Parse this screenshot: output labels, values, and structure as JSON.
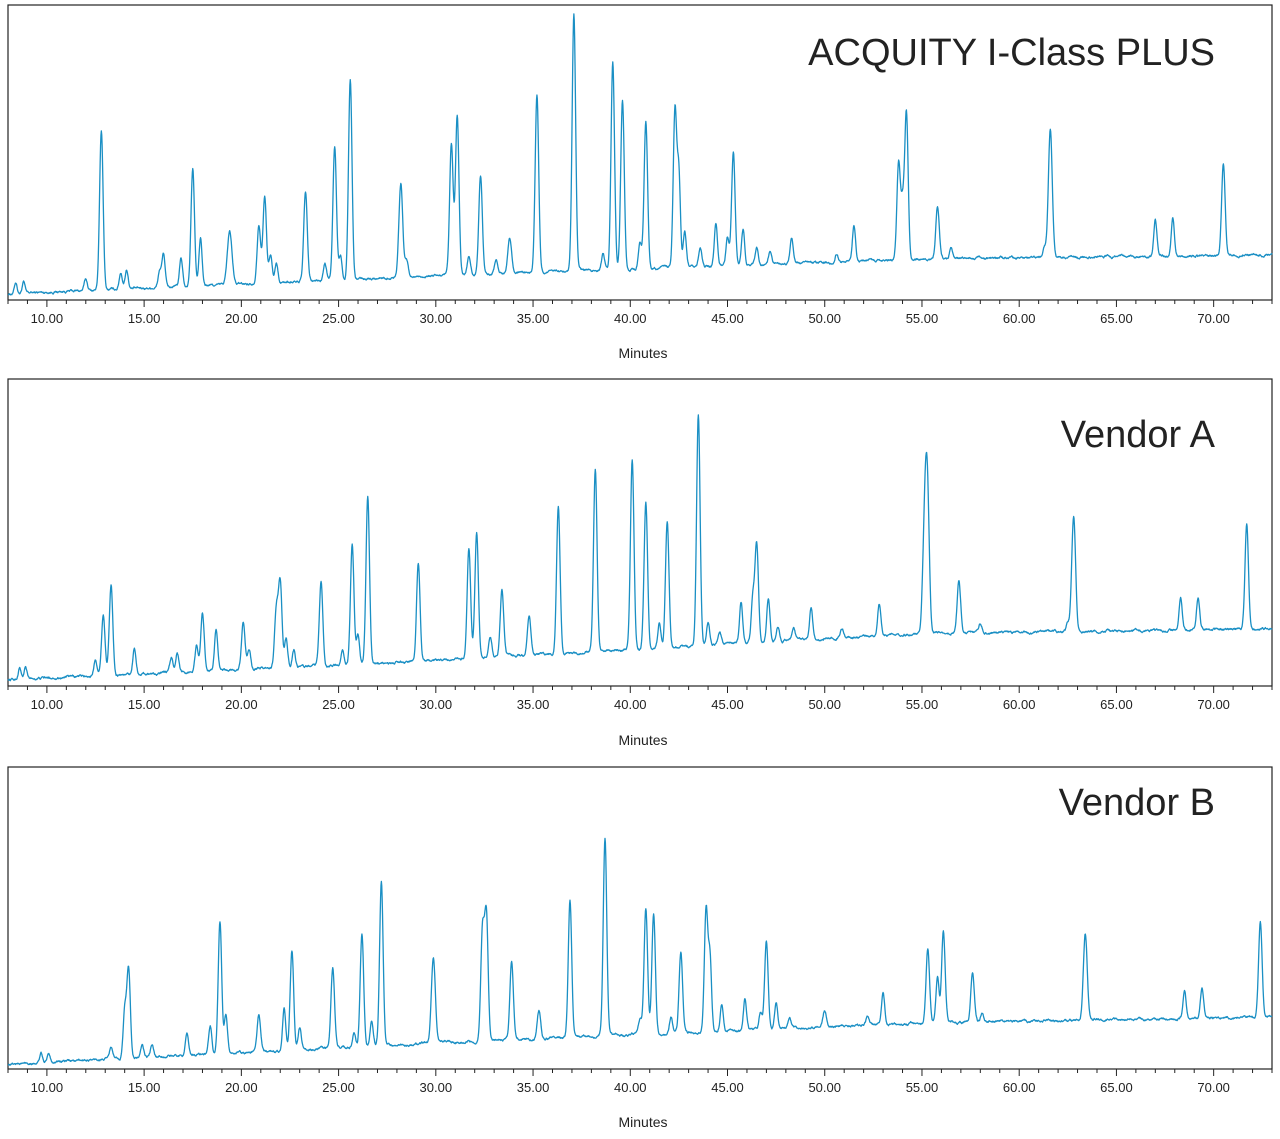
{
  "colors": {
    "trace": "#1a8fc4",
    "frame": "#222222",
    "background": "#ffffff"
  },
  "chart_data": [
    {
      "type": "line",
      "title": "ACQUITY I-Class PLUS",
      "xlabel": "Minutes",
      "ylabel": "",
      "xlim": [
        8.0,
        73.0
      ],
      "ylim": [
        0,
        100
      ],
      "grid": false,
      "legend": "none",
      "xticks": [
        "10.00",
        "15.00",
        "20.00",
        "25.00",
        "30.00",
        "35.00",
        "40.00",
        "45.00",
        "50.00",
        "55.00",
        "60.00",
        "65.00",
        "70.00"
      ],
      "baseline": [
        [
          8.0,
          1.5
        ],
        [
          30.0,
          8.0
        ],
        [
          55.0,
          14.0
        ],
        [
          73.0,
          15.5
        ]
      ],
      "peaks": [
        [
          8.4,
          4,
          0.07
        ],
        [
          8.8,
          4,
          0.07
        ],
        [
          12.0,
          4,
          0.08
        ],
        [
          12.8,
          57,
          0.09
        ],
        [
          13.8,
          6,
          0.08
        ],
        [
          14.1,
          7,
          0.08
        ],
        [
          15.8,
          6,
          0.08
        ],
        [
          16.0,
          12,
          0.08
        ],
        [
          16.9,
          10,
          0.08
        ],
        [
          17.5,
          42,
          0.09
        ],
        [
          17.9,
          17,
          0.08
        ],
        [
          19.4,
          19,
          0.12
        ],
        [
          20.9,
          21,
          0.09
        ],
        [
          21.2,
          31,
          0.09
        ],
        [
          21.5,
          10,
          0.08
        ],
        [
          21.8,
          7,
          0.08
        ],
        [
          23.3,
          32,
          0.09
        ],
        [
          24.3,
          6,
          0.08
        ],
        [
          24.8,
          48,
          0.09
        ],
        [
          25.1,
          9,
          0.08
        ],
        [
          25.6,
          72,
          0.09
        ],
        [
          28.2,
          34,
          0.1
        ],
        [
          28.5,
          6,
          0.08
        ],
        [
          30.8,
          47,
          0.09
        ],
        [
          31.1,
          57,
          0.09
        ],
        [
          31.7,
          7,
          0.08
        ],
        [
          32.3,
          36,
          0.09
        ],
        [
          33.1,
          5,
          0.08
        ],
        [
          33.8,
          13,
          0.1
        ],
        [
          35.2,
          64,
          0.09
        ],
        [
          37.1,
          92,
          0.09
        ],
        [
          38.6,
          6,
          0.08
        ],
        [
          39.1,
          74,
          0.09
        ],
        [
          39.6,
          61,
          0.09
        ],
        [
          40.5,
          9,
          0.08
        ],
        [
          40.8,
          53,
          0.09
        ],
        [
          42.3,
          57,
          0.09
        ],
        [
          42.5,
          33,
          0.08
        ],
        [
          42.8,
          13,
          0.08
        ],
        [
          43.6,
          7,
          0.08
        ],
        [
          44.4,
          15,
          0.08
        ],
        [
          45.0,
          10,
          0.08
        ],
        [
          45.3,
          41,
          0.09
        ],
        [
          45.8,
          13,
          0.08
        ],
        [
          46.5,
          6,
          0.08
        ],
        [
          47.2,
          5,
          0.08
        ],
        [
          48.3,
          9,
          0.08
        ],
        [
          50.6,
          3,
          0.08
        ],
        [
          51.5,
          13,
          0.08
        ],
        [
          53.8,
          35,
          0.09
        ],
        [
          54.0,
          18,
          0.08
        ],
        [
          54.2,
          53,
          0.09
        ],
        [
          55.8,
          19,
          0.09
        ],
        [
          56.5,
          4,
          0.08
        ],
        [
          61.3,
          4,
          0.08
        ],
        [
          61.6,
          46,
          0.1
        ],
        [
          67.0,
          13,
          0.08
        ],
        [
          67.9,
          14,
          0.08
        ],
        [
          70.5,
          33,
          0.09
        ]
      ]
    },
    {
      "type": "line",
      "title": "Vendor A",
      "xlabel": "Minutes",
      "ylabel": "",
      "xlim": [
        8.0,
        73.0
      ],
      "ylim": [
        0,
        100
      ],
      "grid": false,
      "legend": "none",
      "xticks": [
        "10.00",
        "15.00",
        "20.00",
        "25.00",
        "30.00",
        "35.00",
        "40.00",
        "45.00",
        "50.00",
        "55.00",
        "60.00",
        "65.00",
        "70.00"
      ],
      "baseline": [
        [
          8.0,
          1.5
        ],
        [
          30.0,
          8.0
        ],
        [
          55.0,
          17.5
        ],
        [
          73.0,
          19.0
        ]
      ],
      "peaks": [
        [
          8.6,
          4,
          0.07
        ],
        [
          8.9,
          4,
          0.07
        ],
        [
          12.5,
          6,
          0.08
        ],
        [
          12.9,
          21,
          0.09
        ],
        [
          13.3,
          31,
          0.09
        ],
        [
          14.5,
          9,
          0.08
        ],
        [
          16.4,
          5,
          0.08
        ],
        [
          16.7,
          7,
          0.08
        ],
        [
          17.7,
          9,
          0.08
        ],
        [
          18.0,
          20,
          0.09
        ],
        [
          18.7,
          14,
          0.08
        ],
        [
          20.1,
          16,
          0.09
        ],
        [
          20.4,
          7,
          0.08
        ],
        [
          21.8,
          20,
          0.09
        ],
        [
          22.0,
          29,
          0.09
        ],
        [
          22.3,
          10,
          0.08
        ],
        [
          22.7,
          6,
          0.08
        ],
        [
          24.1,
          29,
          0.09
        ],
        [
          25.2,
          5,
          0.08
        ],
        [
          25.7,
          41,
          0.09
        ],
        [
          26.0,
          10,
          0.08
        ],
        [
          26.5,
          58,
          0.09
        ],
        [
          29.1,
          34,
          0.09
        ],
        [
          31.7,
          38,
          0.09
        ],
        [
          32.1,
          43,
          0.09
        ],
        [
          32.8,
          7,
          0.08
        ],
        [
          33.4,
          23,
          0.09
        ],
        [
          34.8,
          14,
          0.09
        ],
        [
          36.3,
          51,
          0.09
        ],
        [
          38.2,
          63,
          0.09
        ],
        [
          40.1,
          65,
          0.09
        ],
        [
          40.8,
          50,
          0.09
        ],
        [
          41.5,
          9,
          0.08
        ],
        [
          41.9,
          43,
          0.09
        ],
        [
          43.5,
          80,
          0.09
        ],
        [
          44.0,
          8,
          0.08
        ],
        [
          44.6,
          4,
          0.08
        ],
        [
          45.7,
          14,
          0.08
        ],
        [
          46.3,
          15,
          0.08
        ],
        [
          46.5,
          35,
          0.09
        ],
        [
          47.1,
          15,
          0.08
        ],
        [
          47.6,
          5,
          0.08
        ],
        [
          48.4,
          4,
          0.08
        ],
        [
          49.3,
          11,
          0.08
        ],
        [
          50.9,
          3,
          0.08
        ],
        [
          52.8,
          11,
          0.08
        ],
        [
          55.1,
          25,
          0.09
        ],
        [
          55.2,
          26,
          0.08
        ],
        [
          55.3,
          40,
          0.09
        ],
        [
          56.9,
          18,
          0.09
        ],
        [
          58.0,
          3,
          0.08
        ],
        [
          62.5,
          3,
          0.08
        ],
        [
          62.8,
          40,
          0.1
        ],
        [
          68.3,
          11,
          0.08
        ],
        [
          69.2,
          11,
          0.08
        ],
        [
          71.7,
          36,
          0.09
        ]
      ]
    },
    {
      "type": "line",
      "title": "Vendor B",
      "xlabel": "Minutes",
      "ylabel": "",
      "xlim": [
        8.0,
        73.0
      ],
      "ylim": [
        0,
        100
      ],
      "grid": false,
      "legend": "none",
      "xticks": [
        "10.00",
        "15.00",
        "20.00",
        "25.00",
        "30.00",
        "35.00",
        "40.00",
        "45.00",
        "50.00",
        "55.00",
        "60.00",
        "65.00",
        "70.00"
      ],
      "baseline": [
        [
          8.0,
          1.0
        ],
        [
          30.0,
          8.5
        ],
        [
          55.0,
          15.5
        ],
        [
          73.0,
          17.5
        ]
      ],
      "peaks": [
        [
          9.7,
          3,
          0.07
        ],
        [
          10.1,
          3,
          0.07
        ],
        [
          13.3,
          4,
          0.08
        ],
        [
          14.0,
          16,
          0.08
        ],
        [
          14.2,
          32,
          0.09
        ],
        [
          14.9,
          4,
          0.08
        ],
        [
          15.4,
          4,
          0.08
        ],
        [
          17.2,
          7,
          0.08
        ],
        [
          18.4,
          10,
          0.08
        ],
        [
          18.9,
          46,
          0.09
        ],
        [
          19.2,
          13,
          0.08
        ],
        [
          20.9,
          13,
          0.09
        ],
        [
          22.2,
          15,
          0.08
        ],
        [
          22.6,
          35,
          0.09
        ],
        [
          23.0,
          8,
          0.08
        ],
        [
          24.7,
          28,
          0.09
        ],
        [
          25.8,
          5,
          0.08
        ],
        [
          26.2,
          39,
          0.09
        ],
        [
          26.7,
          9,
          0.08
        ],
        [
          27.2,
          57,
          0.09
        ],
        [
          29.8,
          10,
          0.08
        ],
        [
          29.9,
          25,
          0.09
        ],
        [
          32.4,
          38,
          0.09
        ],
        [
          32.6,
          44,
          0.09
        ],
        [
          33.9,
          27,
          0.09
        ],
        [
          35.3,
          10,
          0.09
        ],
        [
          36.9,
          48,
          0.09
        ],
        [
          38.7,
          69,
          0.09
        ],
        [
          40.5,
          5,
          0.08
        ],
        [
          40.8,
          44,
          0.09
        ],
        [
          41.2,
          42,
          0.09
        ],
        [
          42.1,
          6,
          0.08
        ],
        [
          42.6,
          28,
          0.09
        ],
        [
          43.9,
          43,
          0.09
        ],
        [
          44.1,
          25,
          0.08
        ],
        [
          44.7,
          9,
          0.08
        ],
        [
          45.9,
          11,
          0.08
        ],
        [
          46.7,
          6,
          0.08
        ],
        [
          47.0,
          31,
          0.09
        ],
        [
          47.5,
          9,
          0.08
        ],
        [
          48.2,
          3,
          0.08
        ],
        [
          50.0,
          6,
          0.09
        ],
        [
          52.2,
          3,
          0.08
        ],
        [
          53.0,
          11,
          0.08
        ],
        [
          55.3,
          26,
          0.09
        ],
        [
          55.8,
          16,
          0.08
        ],
        [
          56.1,
          32,
          0.09
        ],
        [
          57.6,
          17,
          0.09
        ],
        [
          58.1,
          3,
          0.08
        ],
        [
          63.4,
          30,
          0.1
        ],
        [
          68.5,
          10,
          0.08
        ],
        [
          69.4,
          10,
          0.08
        ],
        [
          72.4,
          34,
          0.09
        ]
      ]
    }
  ]
}
